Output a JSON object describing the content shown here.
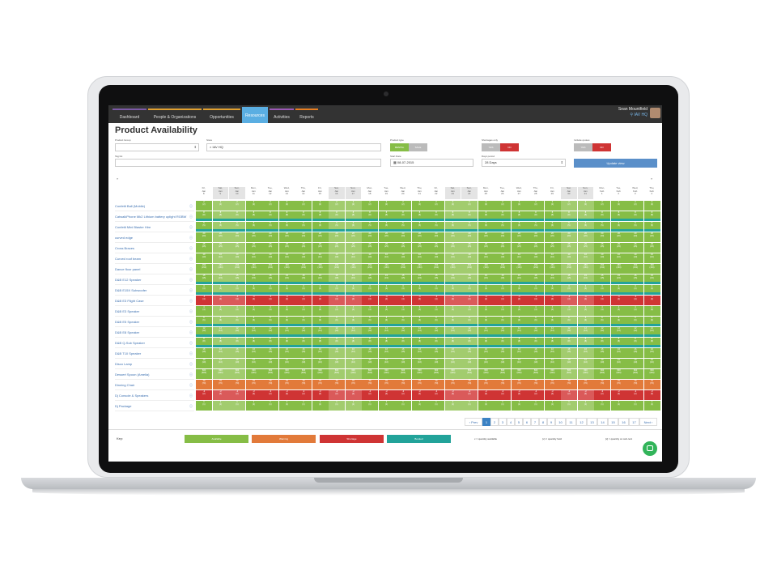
{
  "nav": {
    "items": [
      {
        "label": "Dashboard",
        "accent": "#7c5aa6"
      },
      {
        "label": "People & Organizations",
        "accent": "#e0a030"
      },
      {
        "label": "Opportunities",
        "accent": "#e0a030"
      },
      {
        "label": "Resources",
        "accent": "#5aaee2"
      },
      {
        "label": "Activities",
        "accent": "#9b59b6"
      },
      {
        "label": "Reports",
        "accent": "#e67e22"
      }
    ],
    "active": "Resources",
    "user_name": "Sean Mountfield",
    "user_org": "IAV HQ"
  },
  "page_title": "Product Availability",
  "filters": {
    "product_group_label": "Product Group",
    "product_group_value": "",
    "store_label": "Store",
    "store_value": "IAV HQ",
    "product_type_label": "Product type",
    "rental_label": "RENTAL",
    "sale_label": "SALE",
    "shortages_label": "Shortages only",
    "include_quotes_label": "Include quotes",
    "yes_label": "YES",
    "no_label": "NO",
    "tag_list_label": "Tag list",
    "start_date_label": "Start Date",
    "start_date_value": "08-07-2015",
    "days_period_label": "Days period",
    "days_period_value": "28 Days",
    "update_button": "Update view"
  },
  "days": [
    {
      "d": "Fri,",
      "m": "Jan",
      "n": "8",
      "wk": false
    },
    {
      "d": "Sat,",
      "m": "Jan",
      "n": "9",
      "wk": true
    },
    {
      "d": "Sun,",
      "m": "Jan",
      "n": "10",
      "wk": true
    },
    {
      "d": "Mon,",
      "m": "Jan",
      "n": "11",
      "wk": false
    },
    {
      "d": "Tue,",
      "m": "Jan",
      "n": "12",
      "wk": false
    },
    {
      "d": "Wed,",
      "m": "Jan",
      "n": "13",
      "wk": false
    },
    {
      "d": "Thu,",
      "m": "Jan",
      "n": "14",
      "wk": false
    },
    {
      "d": "Fri,",
      "m": "Jan",
      "n": "15",
      "wk": false
    },
    {
      "d": "Sat,",
      "m": "Jan",
      "n": "16",
      "wk": true
    },
    {
      "d": "Sun,",
      "m": "Jan",
      "n": "17",
      "wk": true
    },
    {
      "d": "Mon,",
      "m": "Jan",
      "n": "18",
      "wk": false
    },
    {
      "d": "Tue,",
      "m": "Jan",
      "n": "19",
      "wk": false
    },
    {
      "d": "Wed,",
      "m": "Jan",
      "n": "20",
      "wk": false
    },
    {
      "d": "Thu,",
      "m": "Jan",
      "n": "21",
      "wk": false
    },
    {
      "d": "Fri,",
      "m": "Jan",
      "n": "22",
      "wk": false
    },
    {
      "d": "Sat,",
      "m": "Jan",
      "n": "23",
      "wk": true
    },
    {
      "d": "Sun,",
      "m": "Jan",
      "n": "24",
      "wk": true
    },
    {
      "d": "Mon,",
      "m": "Jan",
      "n": "25",
      "wk": false
    },
    {
      "d": "Tue,",
      "m": "Jan",
      "n": "26",
      "wk": false
    },
    {
      "d": "Wed,",
      "m": "Jan",
      "n": "27",
      "wk": false
    },
    {
      "d": "Thu,",
      "m": "Jan",
      "n": "28",
      "wk": false
    },
    {
      "d": "Fri,",
      "m": "Jan",
      "n": "29",
      "wk": false
    },
    {
      "d": "Sat,",
      "m": "Jan",
      "n": "30",
      "wk": true
    },
    {
      "d": "Sun,",
      "m": "Jan",
      "n": "31",
      "wk": true
    },
    {
      "d": "Mon,",
      "m": "Feb",
      "n": "1",
      "wk": false
    },
    {
      "d": "Tue,",
      "m": "Feb",
      "n": "2",
      "wk": false
    },
    {
      "d": "Wed,",
      "m": "Feb",
      "n": "3",
      "wk": false
    },
    {
      "d": "Thu,",
      "m": "Feb",
      "n": "4",
      "wk": false
    }
  ],
  "products": [
    {
      "name": "Confetti Ball (Mobile)",
      "a": "2",
      "b": "(2)",
      "status": "avail",
      "booked": false
    },
    {
      "name": "CatwalkPhone Mk2 Lithium battery uplight RGBW",
      "a": "8",
      "b": "(8)",
      "status": "avail",
      "booked": true
    },
    {
      "name": "Confetti Mini Blaster Hire",
      "a": "5",
      "b": "(5)",
      "status": "avail",
      "booked": true
    },
    {
      "name": "curved edge",
      "a": "20",
      "b": "(20)",
      "status": "avail",
      "booked": false
    },
    {
      "name": "Cross Braces",
      "a": "25",
      "b": "(25)",
      "status": "avail",
      "booked": false
    },
    {
      "name": "Curved roof beam",
      "a": "10",
      "b": "(10)",
      "status": "avail",
      "booked": false
    },
    {
      "name": "Dance floor panel",
      "a": "150",
      "b": "(150)",
      "status": "avail",
      "booked": false
    },
    {
      "name": "D&B E12 Speaker",
      "a": "15",
      "b": "(15)",
      "status": "avail",
      "booked": true
    },
    {
      "name": "D&B E15X Subwoofer",
      "a": "3",
      "b": "(3)",
      "status": "avail",
      "booked": true
    },
    {
      "name": "D&B E3 Flight Case",
      "a": "-1",
      "b": "(4)",
      "status": "short",
      "booked": false
    },
    {
      "name": "D&B E3 Speaker",
      "a": "4",
      "b": "(4)",
      "status": "avail",
      "booked": false
    },
    {
      "name": "D&B E5 Speaker",
      "a": "6",
      "b": "(6)",
      "status": "avail",
      "booked": true
    },
    {
      "name": "D&B E8 Speaker",
      "a": "12",
      "b": "(12)",
      "status": "avail",
      "booked": true
    },
    {
      "name": "D&B Q-Sub Speaker",
      "a": "8",
      "b": "(8)",
      "status": "avail",
      "booked": true
    },
    {
      "name": "D&B T10 Speaker",
      "a": "16",
      "b": "(16)",
      "status": "avail",
      "booked": false
    },
    {
      "name": "Disco Lamp",
      "a": "10",
      "b": "(10)",
      "status": "avail",
      "booked": false
    },
    {
      "name": "Dessert Spoon (Amelia)",
      "a": "600",
      "b": "(600)",
      "status": "avail",
      "booked": false
    },
    {
      "name": "Dinning Chair",
      "a": "70",
      "b": "(70)",
      "status": "warn",
      "booked": false
    },
    {
      "name": "Dj Console & Speakers",
      "a": "-2",
      "b": "(2)",
      "status": "short",
      "booked": false
    },
    {
      "name": "Dj Package",
      "a": "1",
      "b": "(1)",
      "status": "avail",
      "booked": false
    }
  ],
  "pagination": {
    "prev": "‹ Prev",
    "pages": [
      "1",
      "2",
      "3",
      "4",
      "5",
      "6",
      "7",
      "8",
      "9",
      "10",
      "11",
      "12",
      "13",
      "14",
      "15",
      "16",
      "17"
    ],
    "current": "1",
    "next": "Next ›"
  },
  "legend": {
    "key_label": "Key:",
    "available": "Available",
    "warning": "Warning",
    "shortage": "Shortage",
    "booked": "Booked",
    "x_desc": "x = quantity available",
    "y_desc": "(x) = quantity held",
    "z_desc": "[x] = quantity on sub-rent"
  },
  "colors": {
    "available": "#86bd46",
    "warning": "#e27a3a",
    "shortage": "#cf3434",
    "booked": "#22a39a",
    "accent": "#5aaee2"
  }
}
